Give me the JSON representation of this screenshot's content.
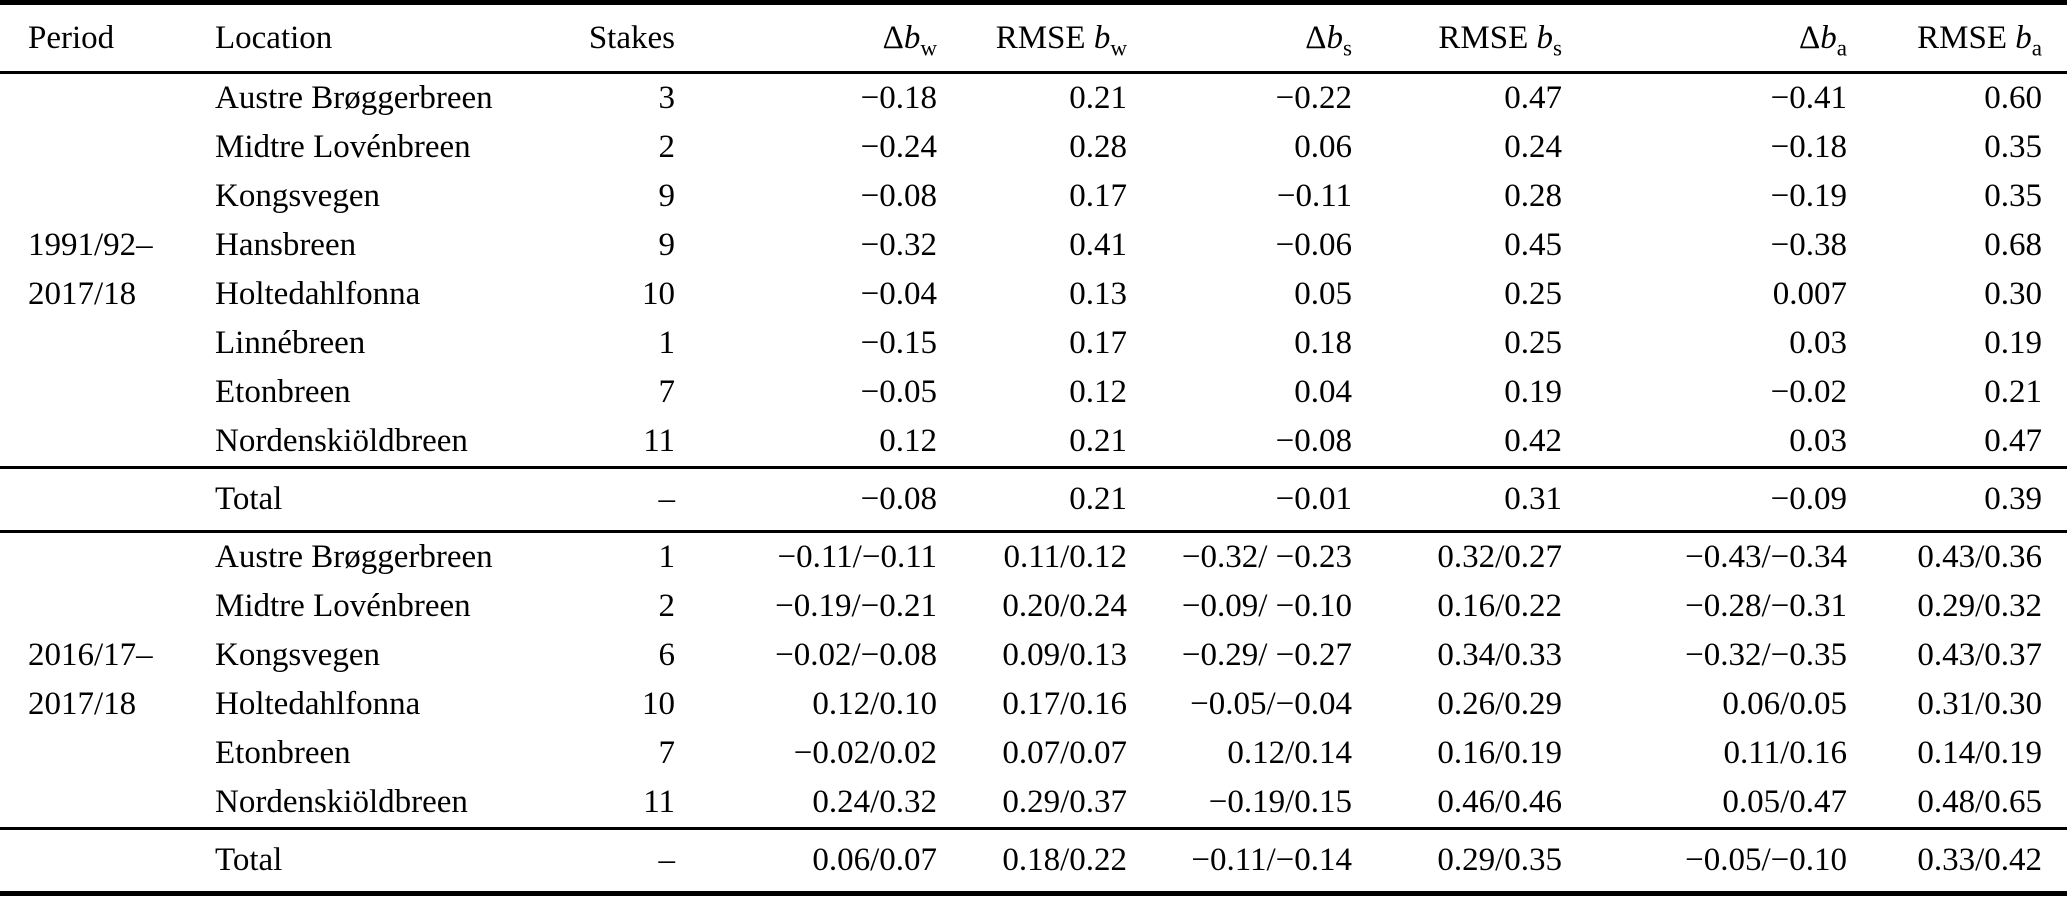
{
  "table": {
    "columns": [
      {
        "label": "Period"
      },
      {
        "label": "Location"
      },
      {
        "label": "Stakes"
      },
      {
        "symbol": "Δ",
        "var": "b",
        "sub": "w"
      },
      {
        "symbol": "RMSE ",
        "var": "b",
        "sub": "w"
      },
      {
        "symbol": "Δ",
        "var": "b",
        "sub": "s"
      },
      {
        "symbol": "RMSE ",
        "var": "b",
        "sub": "s"
      },
      {
        "symbol": "Δ",
        "var": "b",
        "sub": "a"
      },
      {
        "symbol": "RMSE ",
        "var": "b",
        "sub": "a"
      }
    ],
    "sections": [
      {
        "period_line1": "1991/92–",
        "period_line2": "2017/18",
        "rows": [
          {
            "location": "Austre Brøggerbreen",
            "stakes": "3",
            "dbw": "−0.18",
            "rmsebw": "0.21",
            "dbs": "−0.22",
            "rmsebs": "0.47",
            "dba": "−0.41",
            "rmseba": "0.60"
          },
          {
            "location": "Midtre Lovénbreen",
            "stakes": "2",
            "dbw": "−0.24",
            "rmsebw": "0.28",
            "dbs": "0.06",
            "rmsebs": "0.24",
            "dba": "−0.18",
            "rmseba": "0.35"
          },
          {
            "location": "Kongsvegen",
            "stakes": "9",
            "dbw": "−0.08",
            "rmsebw": "0.17",
            "dbs": "−0.11",
            "rmsebs": "0.28",
            "dba": "−0.19",
            "rmseba": "0.35"
          },
          {
            "location": "Hansbreen",
            "stakes": "9",
            "dbw": "−0.32",
            "rmsebw": "0.41",
            "dbs": "−0.06",
            "rmsebs": "0.45",
            "dba": "−0.38",
            "rmseba": "0.68"
          },
          {
            "location": "Holtedahlfonna",
            "stakes": "10",
            "dbw": "−0.04",
            "rmsebw": "0.13",
            "dbs": "0.05",
            "rmsebs": "0.25",
            "dba": "0.007",
            "rmseba": "0.30"
          },
          {
            "location": "Linnébreen",
            "stakes": "1",
            "dbw": "−0.15",
            "rmsebw": "0.17",
            "dbs": "0.18",
            "rmsebs": "0.25",
            "dba": "0.03",
            "rmseba": "0.19"
          },
          {
            "location": "Etonbreen",
            "stakes": "7",
            "dbw": "−0.05",
            "rmsebw": "0.12",
            "dbs": "0.04",
            "rmsebs": "0.19",
            "dba": "−0.02",
            "rmseba": "0.21"
          },
          {
            "location": "Nordenskiöldbreen",
            "stakes": "11",
            "dbw": "0.12",
            "rmsebw": "0.21",
            "dbs": "−0.08",
            "rmsebs": "0.42",
            "dba": "0.03",
            "rmseba": "0.47"
          }
        ],
        "total": {
          "label": "Total",
          "stakes": "–",
          "dbw": "−0.08",
          "rmsebw": "0.21",
          "dbs": "−0.01",
          "rmsebs": "0.31",
          "dba": "−0.09",
          "rmseba": "0.39"
        }
      },
      {
        "period_line1": "2016/17–",
        "period_line2": "2017/18",
        "rows": [
          {
            "location": "Austre Brøggerbreen",
            "stakes": "1",
            "dbw": "−0.11/−0.11",
            "rmsebw": "0.11/0.12",
            "dbs": "−0.32/ −0.23",
            "rmsebs": "0.32/0.27",
            "dba": "−0.43/−0.34",
            "rmseba": "0.43/0.36"
          },
          {
            "location": "Midtre Lovénbreen",
            "stakes": "2",
            "dbw": "−0.19/−0.21",
            "rmsebw": "0.20/0.24",
            "dbs": "−0.09/ −0.10",
            "rmsebs": "0.16/0.22",
            "dba": "−0.28/−0.31",
            "rmseba": "0.29/0.32"
          },
          {
            "location": "Kongsvegen",
            "stakes": "6",
            "dbw": "−0.02/−0.08",
            "rmsebw": "0.09/0.13",
            "dbs": "−0.29/ −0.27",
            "rmsebs": "0.34/0.33",
            "dba": "−0.32/−0.35",
            "rmseba": "0.43/0.37"
          },
          {
            "location": "Holtedahlfonna",
            "stakes": "10",
            "dbw": "0.12/0.10",
            "rmsebw": "0.17/0.16",
            "dbs": "−0.05/−0.04",
            "rmsebs": "0.26/0.29",
            "dba": "0.06/0.05",
            "rmseba": "0.31/0.30"
          },
          {
            "location": "Etonbreen",
            "stakes": "7",
            "dbw": "−0.02/0.02",
            "rmsebw": "0.07/0.07",
            "dbs": "0.12/0.14",
            "rmsebs": "0.16/0.19",
            "dba": "0.11/0.16",
            "rmseba": "0.14/0.19"
          },
          {
            "location": "Nordenskiöldbreen",
            "stakes": "11",
            "dbw": "0.24/0.32",
            "rmsebw": "0.29/0.37",
            "dbs": "−0.19/0.15",
            "rmsebs": "0.46/0.46",
            "dba": "0.05/0.47",
            "rmseba": "0.48/0.65"
          }
        ],
        "total": {
          "label": "Total",
          "stakes": "–",
          "dbw": "0.06/0.07",
          "rmsebw": "0.18/0.22",
          "dbs": "−0.11/−0.14",
          "rmsebs": "0.29/0.35",
          "dba": "−0.05/−0.10",
          "rmseba": "0.33/0.42"
        }
      }
    ]
  }
}
